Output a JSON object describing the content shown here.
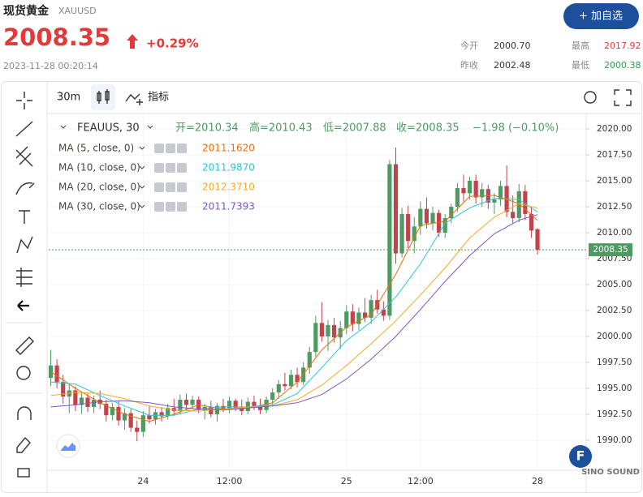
{
  "header": {
    "title": "现货黄金",
    "symbol": "XAUUSD",
    "price": "2008.35",
    "change": "+0.29%",
    "timestamp": "2023-11-28 00:20:14",
    "button": "+ 加自选",
    "stats": [
      {
        "label": "今开",
        "value": "2000.70"
      },
      {
        "label": "最高",
        "value": "2017.92"
      },
      {
        "label": "昨收",
        "value": "2002.48"
      },
      {
        "label": "最低",
        "value": "2000.38"
      }
    ]
  },
  "toolbar": {
    "interval": "30m",
    "indicators": "指标"
  },
  "watermark": "SINO SOUND",
  "chart_data": {
    "type": "candlestick",
    "legend": {
      "symbol": "FEAUUS, 30",
      "open": "开=2010.34",
      "high": "高=2010.43",
      "low": "低=2007.88",
      "close": "收=2008.35",
      "change": "−1.98 (−0.10%)"
    },
    "up_color": "#4f9a62",
    "down_color": "#c0444e",
    "ylim": [
      1987.1,
      2020.94
    ],
    "yticks": [
      {
        "value": 1990,
        "label": "1990.00"
      },
      {
        "value": 1992.5,
        "label": "1992.50"
      },
      {
        "value": 1995,
        "label": "1995.00"
      },
      {
        "value": 1997.5,
        "label": "1997.50"
      },
      {
        "value": 2000,
        "label": "2000.00"
      },
      {
        "value": 2002.5,
        "label": "2002.50"
      },
      {
        "value": 2005,
        "label": "2005.00"
      },
      {
        "value": 2007.5,
        "label": "2007.50"
      },
      {
        "value": 2010,
        "label": "2010.00"
      },
      {
        "value": 2012.5,
        "label": "2012.50"
      },
      {
        "value": 2015,
        "label": "2015.00"
      },
      {
        "value": 2017.5,
        "label": "2017.50"
      },
      {
        "value": 2020,
        "label": "2020.00"
      }
    ],
    "xlim": [
      -0.33,
      86.9
    ],
    "xticks": [
      {
        "value": 15,
        "label": "24"
      },
      {
        "value": 29,
        "label": "12:00"
      },
      {
        "value": 48,
        "label": "25"
      },
      {
        "value": 60,
        "label": "12:00"
      },
      {
        "value": 79,
        "label": "28"
      }
    ],
    "grid": true,
    "last_price": 2008.35,
    "ohlc": [
      [
        1996.0,
        1998.7,
        1995.2,
        1997.2
      ],
      [
        1997.2,
        1997.8,
        1995.0,
        1995.6
      ],
      [
        1995.6,
        1996.3,
        1993.5,
        1994.2
      ],
      [
        1994.2,
        1995.4,
        1992.6,
        1994.8
      ],
      [
        1994.8,
        1995.2,
        1992.8,
        1993.4
      ],
      [
        1993.4,
        1994.6,
        1992.5,
        1994.1
      ],
      [
        1994.1,
        1994.5,
        1992.7,
        1993.2
      ],
      [
        1993.2,
        1994.3,
        1992.6,
        1993.9
      ],
      [
        1993.9,
        1994.8,
        1993.0,
        1993.5
      ],
      [
        1993.5,
        1993.9,
        1991.8,
        1992.4
      ],
      [
        1992.4,
        1993.6,
        1991.9,
        1993.2
      ],
      [
        1993.2,
        1993.8,
        1991.4,
        1991.9
      ],
      [
        1991.9,
        1993.1,
        1991.0,
        1992.6
      ],
      [
        1992.6,
        1993.0,
        1990.8,
        1991.2
      ],
      [
        1991.2,
        1991.9,
        1989.9,
        1990.8
      ],
      [
        1990.8,
        1992.8,
        1990.3,
        1992.4
      ],
      [
        1992.4,
        1993.3,
        1991.6,
        1992.0
      ],
      [
        1992.0,
        1993.0,
        1991.5,
        1992.7
      ],
      [
        1992.7,
        1993.2,
        1991.8,
        1992.3
      ],
      [
        1992.3,
        1993.5,
        1992.0,
        1993.1
      ],
      [
        1993.1,
        1994.0,
        1992.4,
        1992.8
      ],
      [
        1992.8,
        1994.4,
        1992.5,
        1993.9
      ],
      [
        1993.9,
        1994.5,
        1992.9,
        1993.4
      ],
      [
        1993.4,
        1994.3,
        1993.0,
        1993.9
      ],
      [
        1993.9,
        1994.2,
        1992.6,
        1992.9
      ],
      [
        1992.9,
        1993.5,
        1992.0,
        1993.2
      ],
      [
        1993.2,
        1993.8,
        1992.2,
        1992.5
      ],
      [
        1992.5,
        1993.6,
        1991.8,
        1993.3
      ],
      [
        1993.3,
        1994.0,
        1992.7,
        1993.0
      ],
      [
        1993.0,
        1994.2,
        1992.6,
        1993.8
      ],
      [
        1993.8,
        1994.0,
        1992.8,
        1993.1
      ],
      [
        1993.1,
        1993.9,
        1992.4,
        1992.8
      ],
      [
        1992.8,
        1994.1,
        1992.5,
        1993.7
      ],
      [
        1993.7,
        1994.3,
        1992.9,
        1993.3
      ],
      [
        1993.3,
        1994.0,
        1992.5,
        1992.9
      ],
      [
        1992.9,
        1994.2,
        1992.6,
        1993.9
      ],
      [
        1993.9,
        1995.0,
        1993.4,
        1994.6
      ],
      [
        1994.6,
        1995.8,
        1994.0,
        1995.4
      ],
      [
        1995.4,
        1996.5,
        1994.8,
        1995.2
      ],
      [
        1995.2,
        1996.8,
        1994.9,
        1996.3
      ],
      [
        1996.3,
        1997.0,
        1995.1,
        1995.6
      ],
      [
        1995.6,
        1997.5,
        1995.3,
        1997.0
      ],
      [
        1997.0,
        1999.0,
        1996.4,
        1998.5
      ],
      [
        1998.5,
        2002.0,
        1998.0,
        2001.3
      ],
      [
        2001.3,
        2003.3,
        1999.5,
        2000.0
      ],
      [
        2000.0,
        2001.6,
        1998.6,
        2001.1
      ],
      [
        2001.1,
        2001.8,
        1999.4,
        1999.9
      ],
      [
        1999.9,
        2001.5,
        1998.8,
        2000.8
      ],
      [
        2000.8,
        2003.0,
        2000.2,
        2002.4
      ],
      [
        2002.4,
        2003.1,
        2000.5,
        2001.2
      ],
      [
        2001.2,
        2002.8,
        2000.6,
        2002.3
      ],
      [
        2002.3,
        2003.7,
        2001.4,
        2001.8
      ],
      [
        2001.8,
        2004.0,
        2001.2,
        2003.5
      ],
      [
        2003.5,
        2004.5,
        2002.2,
        2002.6
      ],
      [
        2002.6,
        2003.4,
        2001.5,
        2002.0
      ],
      [
        2002.0,
        2017.0,
        2001.6,
        2016.6
      ],
      [
        2016.6,
        2018.2,
        2007.0,
        2008.0
      ],
      [
        2008.0,
        2012.4,
        2007.6,
        2011.8
      ],
      [
        2011.8,
        2012.6,
        2008.5,
        2009.2
      ],
      [
        2009.2,
        2011.5,
        2008.0,
        2010.6
      ],
      [
        2010.6,
        2013.0,
        2009.8,
        2012.3
      ],
      [
        2012.3,
        2013.4,
        2010.4,
        2010.9
      ],
      [
        2010.9,
        2012.5,
        2010.2,
        2011.9
      ],
      [
        2011.9,
        2012.2,
        2009.6,
        2010.0
      ],
      [
        2010.0,
        2011.8,
        2009.5,
        2011.4
      ],
      [
        2011.4,
        2012.8,
        2010.9,
        2012.5
      ],
      [
        2012.5,
        2014.8,
        2012.0,
        2014.3
      ],
      [
        2014.3,
        2015.6,
        2013.0,
        2013.8
      ],
      [
        2013.8,
        2015.4,
        2013.2,
        2015.0
      ],
      [
        2015.0,
        2015.6,
        2012.8,
        2013.4
      ],
      [
        2013.4,
        2014.8,
        2012.5,
        2014.2
      ],
      [
        2014.2,
        2014.6,
        2012.3,
        2012.9
      ],
      [
        2012.9,
        2013.8,
        2011.8,
        2013.2
      ],
      [
        2013.2,
        2015.0,
        2012.6,
        2014.5
      ],
      [
        2014.5,
        2016.5,
        2011.5,
        2012.0
      ],
      [
        2012.0,
        2013.6,
        2010.9,
        2011.4
      ],
      [
        2011.4,
        2014.7,
        2011.0,
        2014.0
      ],
      [
        2014.0,
        2014.6,
        2011.2,
        2011.8
      ],
      [
        2011.8,
        2012.5,
        2009.5,
        2010.2
      ],
      [
        2010.34,
        2010.43,
        2007.88,
        2008.35
      ]
    ],
    "series": [
      {
        "name": "MA (5, close, 0)",
        "last_label": "2011.1620",
        "color": "#ef6c00",
        "x": [
          0,
          4,
          8,
          12,
          16,
          20,
          24,
          28,
          32,
          36,
          40,
          44,
          48,
          52,
          56,
          60,
          64,
          68,
          72,
          76,
          79
        ],
        "values": [
          1996.6,
          1995.0,
          1993.6,
          1992.5,
          1991.8,
          1992.5,
          1993.4,
          1993.0,
          1993.1,
          1993.6,
          1995.6,
          1998.7,
          2000.9,
          2002.1,
          2006.0,
          2010.7,
          2011.1,
          2013.5,
          2013.6,
          2012.8,
          2011.2
        ]
      },
      {
        "name": "MA (10, close, 0)",
        "last_label": "2011.9870",
        "color": "#26c6da",
        "x": [
          0,
          4,
          8,
          12,
          16,
          20,
          24,
          28,
          32,
          36,
          40,
          44,
          48,
          52,
          56,
          60,
          64,
          68,
          72,
          76,
          79
        ],
        "values": [
          1995.6,
          1995.4,
          1994.3,
          1993.3,
          1992.4,
          1992.4,
          1993.0,
          1993.2,
          1993.2,
          1993.4,
          1994.5,
          1997.0,
          1999.6,
          2001.4,
          2003.8,
          2007.0,
          2010.9,
          2012.4,
          2013.3,
          2013.2,
          2011.99
        ]
      },
      {
        "name": "MA (20, close, 0)",
        "last_label": "2012.3710",
        "color": "#f9a825",
        "x": [
          0,
          4,
          8,
          12,
          16,
          20,
          24,
          28,
          32,
          36,
          40,
          44,
          48,
          52,
          56,
          60,
          64,
          68,
          72,
          76,
          79
        ],
        "values": [
          1994.3,
          1994.6,
          1994.5,
          1994.0,
          1993.3,
          1992.9,
          1992.8,
          1993.0,
          1993.2,
          1993.3,
          1993.9,
          1995.3,
          1997.2,
          1999.3,
          2001.5,
          2004.0,
          2006.6,
          2009.5,
          2011.5,
          2012.8,
          2012.37
        ]
      },
      {
        "name": "MA (30, close, 0)",
        "last_label": "2011.7393",
        "color": "#7e57c2",
        "x": [
          0,
          4,
          8,
          12,
          16,
          20,
          24,
          28,
          32,
          36,
          40,
          44,
          48,
          52,
          56,
          60,
          64,
          68,
          72,
          76,
          79
        ],
        "values": [
          1993.2,
          1993.4,
          1993.7,
          1993.8,
          1993.6,
          1993.2,
          1993.0,
          1992.9,
          1993.1,
          1993.3,
          1993.6,
          1994.4,
          1995.9,
          1997.8,
          2000.0,
          2002.6,
          2005.3,
          2007.8,
          2009.9,
          2011.2,
          2011.74
        ]
      }
    ]
  }
}
